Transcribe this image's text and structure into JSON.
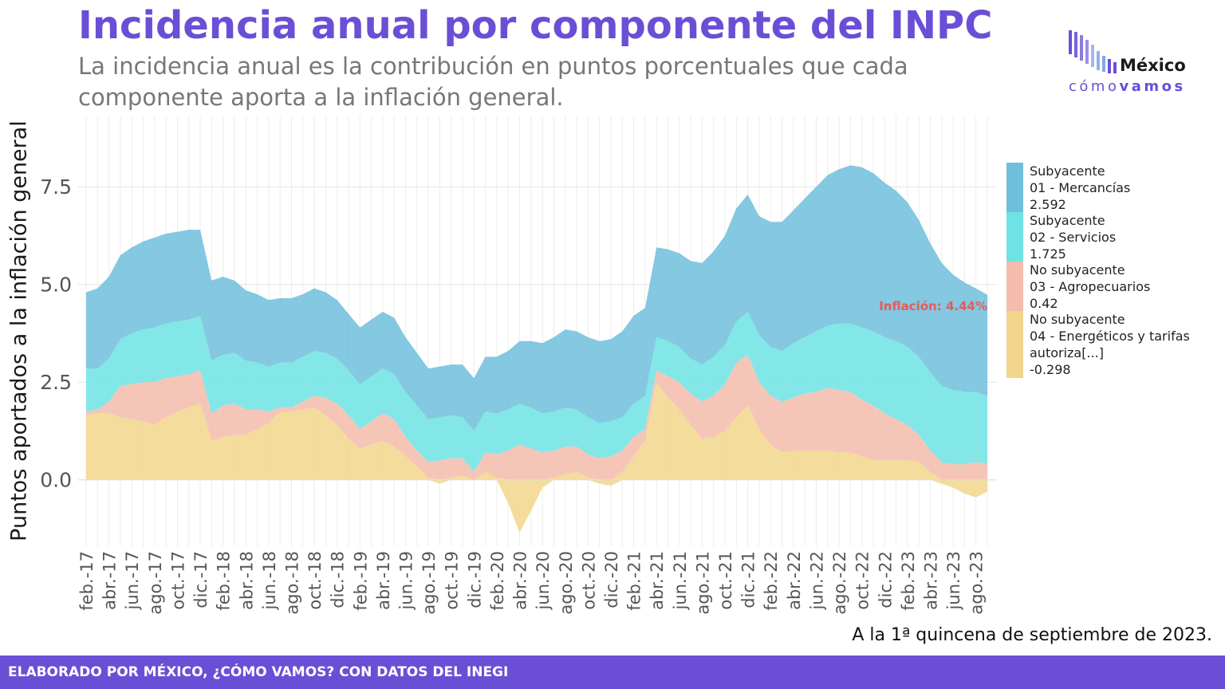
{
  "header": {
    "title": "Incidencia anual por componente del INPC",
    "subtitle": "La incidencia anual es la contribución en puntos porcentuales que cada componente aporta a la inflación general."
  },
  "logo": {
    "word": "México",
    "tag_light": "cómo",
    "tag_bold": "vamos"
  },
  "footer": {
    "source_note": "A la 1ª quincena de septiembre de 2023.",
    "credit": "ELABORADO POR MÉXICO, ¿CÓMO VAMOS? CON DATOS DEL INEGI"
  },
  "colors": {
    "title": "#6a4fd6",
    "mercancias": "#6fbedc",
    "servicios": "#6fe3e3",
    "agropecuarios": "#f3bcac",
    "energeticos": "#f2d68c",
    "annotation": "#e85a5a",
    "footer_bg": "#6a4fd6"
  },
  "chart_data": {
    "type": "area",
    "stacked": true,
    "ylabel": "Puntos aportados a la inflación general",
    "xlabel": "",
    "ylim": [
      -1.7,
      9.3
    ],
    "yticks": [
      "0.0",
      "2.5",
      "5.0",
      "7.5"
    ],
    "ytick_values": [
      0,
      2.5,
      5,
      7.5
    ],
    "grid": true,
    "legend_position": "right",
    "x": [
      "feb.-17",
      "mar.-17",
      "abr.-17",
      "may.-17",
      "jun.-17",
      "jul.-17",
      "ago.-17",
      "sep.-17",
      "oct.-17",
      "nov.-17",
      "dic.-17",
      "ene.-18",
      "feb.-18",
      "mar.-18",
      "abr.-18",
      "may.-18",
      "jun.-18",
      "jul.-18",
      "ago.-18",
      "sep.-18",
      "oct.-18",
      "nov.-18",
      "dic.-18",
      "ene.-19",
      "feb.-19",
      "mar.-19",
      "abr.-19",
      "may.-19",
      "jun.-19",
      "jul.-19",
      "ago.-19",
      "sep.-19",
      "oct.-19",
      "nov.-19",
      "dic.-19",
      "ene.-20",
      "feb.-20",
      "mar.-20",
      "abr.-20",
      "may.-20",
      "jun.-20",
      "jul.-20",
      "ago.-20",
      "sep.-20",
      "oct.-20",
      "nov.-20",
      "dic.-20",
      "ene.-21",
      "feb.-21",
      "mar.-21",
      "abr.-21",
      "may.-21",
      "jun.-21",
      "jul.-21",
      "ago.-21",
      "sep.-21",
      "oct.-21",
      "nov.-21",
      "dic.-21",
      "ene.-22",
      "feb.-22",
      "mar.-22",
      "abr.-22",
      "may.-22",
      "jun.-22",
      "jul.-22",
      "ago.-22",
      "sep.-22",
      "oct.-22",
      "nov.-22",
      "dic.-22",
      "ene.-23",
      "feb.-23",
      "mar.-23",
      "abr.-23",
      "may.-23",
      "jun.-23",
      "jul.-23",
      "ago.-23",
      "sep.-23"
    ],
    "xticks": [
      "feb.-17",
      "abr.-17",
      "jun.-17",
      "ago.-17",
      "oct.-17",
      "dic.-17",
      "feb.-18",
      "abr.-18",
      "jun.-18",
      "ago.-18",
      "oct.-18",
      "dic.-18",
      "feb.-19",
      "abr.-19",
      "jun.-19",
      "ago.-19",
      "oct.-19",
      "dic.-19",
      "feb.-20",
      "abr.-20",
      "jun.-20",
      "ago.-20",
      "oct.-20",
      "dic.-20",
      "feb.-21",
      "abr.-21",
      "jun.-21",
      "ago.-21",
      "oct.-21",
      "dic.-21",
      "feb.-22",
      "abr.-22",
      "jun.-22",
      "ago.-22",
      "oct.-22",
      "dic.-22",
      "feb.-23",
      "abr.-23",
      "jun.-23",
      "ago.-23"
    ],
    "series": [
      {
        "name": "Subyacente\n01 - Mercancías\n2.592",
        "color": "#6fbedc",
        "values": [
          1.95,
          2.05,
          2.1,
          2.15,
          2.2,
          2.25,
          2.3,
          2.3,
          2.3,
          2.3,
          2.2,
          2.05,
          2.0,
          1.85,
          1.8,
          1.75,
          1.7,
          1.65,
          1.65,
          1.6,
          1.6,
          1.55,
          1.5,
          1.45,
          1.45,
          1.45,
          1.45,
          1.45,
          1.4,
          1.35,
          1.3,
          1.3,
          1.3,
          1.35,
          1.35,
          1.4,
          1.45,
          1.5,
          1.6,
          1.7,
          1.8,
          1.9,
          2.0,
          2.0,
          2.05,
          2.1,
          2.1,
          2.2,
          2.25,
          2.25,
          2.3,
          2.35,
          2.4,
          2.5,
          2.6,
          2.7,
          2.8,
          2.9,
          3.0,
          3.05,
          3.2,
          3.3,
          3.4,
          3.55,
          3.7,
          3.85,
          3.95,
          4.05,
          4.1,
          4.05,
          3.95,
          3.85,
          3.7,
          3.5,
          3.3,
          3.15,
          2.95,
          2.8,
          2.65,
          2.592
        ]
      },
      {
        "name": "Subyacente\n02 - Servicios\n1.725",
        "color": "#6fe3e3",
        "values": [
          1.1,
          1.05,
          1.1,
          1.2,
          1.3,
          1.35,
          1.4,
          1.4,
          1.4,
          1.4,
          1.4,
          1.35,
          1.3,
          1.3,
          1.25,
          1.2,
          1.15,
          1.15,
          1.15,
          1.15,
          1.15,
          1.15,
          1.15,
          1.15,
          1.15,
          1.15,
          1.15,
          1.15,
          1.15,
          1.15,
          1.1,
          1.1,
          1.1,
          1.05,
          1.05,
          1.05,
          1.05,
          1.05,
          1.05,
          1.05,
          1.0,
          1.0,
          1.0,
          0.95,
          0.95,
          0.9,
          0.9,
          0.85,
          0.85,
          0.85,
          0.85,
          0.9,
          0.9,
          0.9,
          0.95,
          1.0,
          1.0,
          1.05,
          1.1,
          1.2,
          1.25,
          1.3,
          1.4,
          1.45,
          1.55,
          1.6,
          1.7,
          1.75,
          1.85,
          1.9,
          1.95,
          2.0,
          2.0,
          2.0,
          2.0,
          1.95,
          1.9,
          1.85,
          1.8,
          1.725
        ]
      },
      {
        "name": "No subyacente\n03 - Agropecuarios\n0.42",
        "color": "#f3bcac",
        "values": [
          0.1,
          0.1,
          0.3,
          0.8,
          0.9,
          1.0,
          1.1,
          1.0,
          0.9,
          0.85,
          0.85,
          0.7,
          0.8,
          0.8,
          0.65,
          0.5,
          0.3,
          0.1,
          0.1,
          0.2,
          0.3,
          0.45,
          0.55,
          0.6,
          0.5,
          0.6,
          0.7,
          0.7,
          0.5,
          0.4,
          0.4,
          0.5,
          0.5,
          0.45,
          0.2,
          0.5,
          0.6,
          0.75,
          0.9,
          0.8,
          0.7,
          0.7,
          0.7,
          0.65,
          0.6,
          0.55,
          0.6,
          0.55,
          0.5,
          0.3,
          0.3,
          0.55,
          0.7,
          0.8,
          0.95,
          1.05,
          1.2,
          1.4,
          1.3,
          1.2,
          1.25,
          1.3,
          1.35,
          1.45,
          1.5,
          1.6,
          1.6,
          1.55,
          1.45,
          1.4,
          1.2,
          1.05,
          0.9,
          0.7,
          0.55,
          0.45,
          0.4,
          0.4,
          0.45,
          0.42
        ]
      },
      {
        "name": "No subyacente\n04 - Energéticos y tarifas\nautoriza[...]\n-0.298",
        "color": "#f2d68c",
        "values": [
          1.65,
          1.7,
          1.7,
          1.6,
          1.55,
          1.5,
          1.4,
          1.6,
          1.75,
          1.85,
          1.95,
          1.0,
          1.1,
          1.15,
          1.15,
          1.3,
          1.45,
          1.75,
          1.75,
          1.8,
          1.85,
          1.65,
          1.4,
          1.05,
          0.8,
          0.9,
          1.0,
          0.85,
          0.6,
          0.35,
          0.05,
          -0.1,
          0.05,
          0.1,
          0.0,
          0.2,
          0.05,
          -0.6,
          -1.35,
          -0.8,
          -0.2,
          0.05,
          0.15,
          0.2,
          0.05,
          -0.1,
          -0.15,
          0.2,
          0.6,
          1.0,
          2.5,
          2.1,
          1.8,
          1.4,
          1.05,
          1.1,
          1.25,
          1.6,
          1.9,
          1.3,
          0.9,
          0.7,
          0.75,
          0.75,
          0.75,
          0.75,
          0.7,
          0.7,
          0.6,
          0.5,
          0.5,
          0.5,
          0.5,
          0.45,
          0.2,
          -0.1,
          -0.2,
          -0.35,
          -0.45,
          -0.298
        ]
      }
    ],
    "annotation": {
      "text": "Inflación: 4.44%",
      "x": "sep.-23",
      "y": 4.44
    }
  }
}
